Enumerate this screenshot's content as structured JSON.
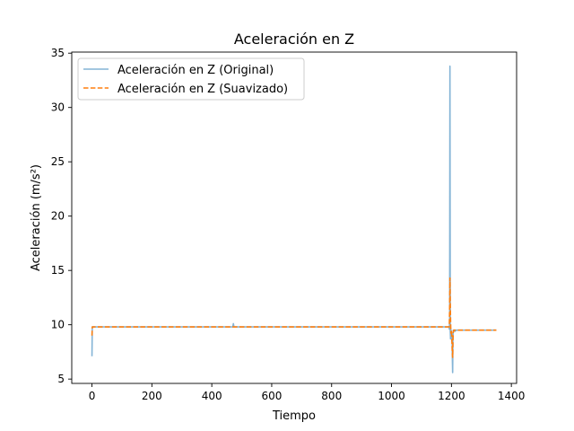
{
  "chart_data": {
    "type": "line",
    "title": "Aceleración en Z",
    "xlabel": "Tiempo",
    "ylabel": "Aceleración (m/s²)",
    "xlim": [
      -67.5,
      1417.5
    ],
    "ylim": [
      4.6,
      35.1
    ],
    "xticks": [
      0,
      200,
      400,
      600,
      800,
      1000,
      1200,
      1400
    ],
    "yticks": [
      5,
      10,
      15,
      20,
      25,
      30,
      35
    ],
    "grid": false,
    "legend_position": "top-left",
    "series": [
      {
        "name": "Aceleración en Z (Original)",
        "color": "#1f77b4",
        "style": "solid",
        "x": [
          0,
          1,
          2,
          3,
          5,
          100,
          200,
          300,
          400,
          470,
          472,
          474,
          476,
          600,
          800,
          1000,
          1100,
          1190,
          1192,
          1193,
          1194,
          1195,
          1196,
          1197,
          1198,
          1199,
          1200,
          1201,
          1202,
          1203,
          1204,
          1205,
          1206,
          1207,
          1208,
          1210,
          1212,
          1215,
          1220,
          1300,
          1350
        ],
        "y": [
          7.1,
          9.8,
          9.8,
          9.81,
          9.8,
          9.8,
          9.8,
          9.8,
          9.8,
          9.8,
          10.1,
          9.8,
          9.8,
          9.8,
          9.8,
          9.8,
          9.8,
          9.8,
          9.8,
          9.6,
          10.5,
          33.8,
          9.5,
          8.7,
          9.6,
          8.8,
          9.3,
          8.6,
          9.0,
          7.0,
          5.6,
          8.8,
          9.5,
          9.4,
          9.5,
          9.5,
          9.4,
          9.5,
          9.5,
          9.5,
          9.5
        ]
      },
      {
        "name": "Aceleración en Z (Suavizado)",
        "color": "#ff7f0e",
        "style": "dashed",
        "x": [
          0,
          1,
          2,
          4,
          100,
          200,
          300,
          400,
          600,
          800,
          1000,
          1100,
          1190,
          1192,
          1193,
          1194,
          1195,
          1196,
          1197,
          1198,
          1199,
          1200,
          1201,
          1202,
          1203,
          1204,
          1205,
          1206,
          1208,
          1210,
          1215,
          1220,
          1300,
          1350
        ],
        "y": [
          9.0,
          9.8,
          9.8,
          9.8,
          9.8,
          9.8,
          9.8,
          9.8,
          9.8,
          9.8,
          9.8,
          9.8,
          9.8,
          9.8,
          10.0,
          11.5,
          14.3,
          12.0,
          10.5,
          9.3,
          9.2,
          9.5,
          8.9,
          8.2,
          7.4,
          7.0,
          8.5,
          9.3,
          9.5,
          9.5,
          9.5,
          9.5,
          9.5,
          9.5
        ]
      }
    ]
  }
}
